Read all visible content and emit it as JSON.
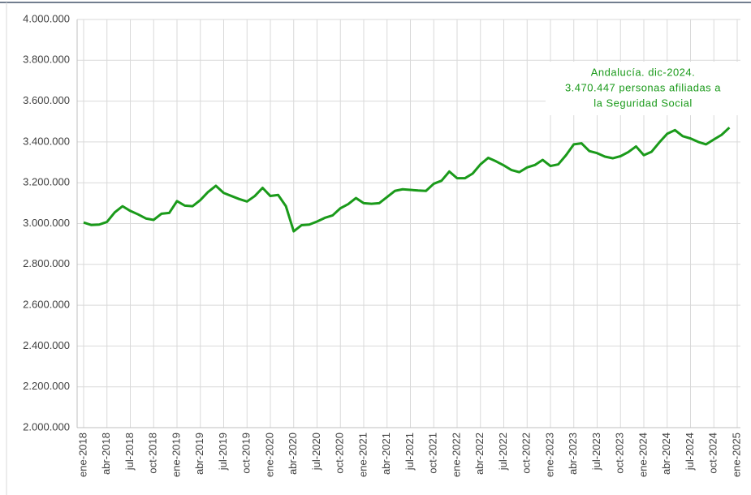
{
  "chart_data": {
    "type": "line",
    "annotation": [
      "Andalucía. dic-2024.",
      "3.470.447 personas afiliadas a",
      "la Seguridad Social"
    ],
    "categories": [
      "ene-2018",
      null,
      null,
      "abr-2018",
      null,
      null,
      "jul-2018",
      null,
      null,
      "oct-2018",
      null,
      null,
      "ene-2019",
      null,
      null,
      "abr-2019",
      null,
      null,
      "jul-2019",
      null,
      null,
      "oct-2019",
      null,
      null,
      "ene-2020",
      null,
      null,
      "abr-2020",
      null,
      null,
      "jul-2020",
      null,
      null,
      "oct-2020",
      null,
      null,
      "ene-2021",
      null,
      null,
      "abr-2021",
      null,
      null,
      "jul-2021",
      null,
      null,
      "oct-2021",
      null,
      null,
      "ene-2022",
      null,
      null,
      "abr-2022",
      null,
      null,
      "jul-2022",
      null,
      null,
      "oct-2022",
      null,
      null,
      "ene-2023",
      null,
      null,
      "abr-2023",
      null,
      null,
      "jul-2023",
      null,
      null,
      "oct-2023",
      null,
      null,
      "ene-2024",
      null,
      null,
      "abr-2024",
      null,
      null,
      "jul-2024",
      null,
      null,
      "oct-2024",
      null,
      null,
      "ene-2025"
    ],
    "series": [
      {
        "color": "#1a9a1a",
        "values": [
          3005000,
          2993000,
          2995000,
          3008000,
          3055000,
          3085000,
          3062000,
          3045000,
          3025000,
          3018000,
          3048000,
          3052000,
          3110000,
          3088000,
          3085000,
          3115000,
          3155000,
          3185000,
          3150000,
          3135000,
          3120000,
          3108000,
          3135000,
          3175000,
          3135000,
          3140000,
          3085000,
          2962000,
          2992000,
          2995000,
          3010000,
          3028000,
          3040000,
          3075000,
          3095000,
          3125000,
          3100000,
          3097000,
          3100000,
          3130000,
          3160000,
          3168000,
          3165000,
          3162000,
          3160000,
          3195000,
          3210000,
          3255000,
          3222000,
          3222000,
          3245000,
          3290000,
          3322000,
          3305000,
          3285000,
          3262000,
          3252000,
          3275000,
          3287000,
          3312000,
          3282000,
          3290000,
          3335000,
          3388000,
          3393000,
          3355000,
          3345000,
          3328000,
          3320000,
          3330000,
          3350000,
          3378000,
          3335000,
          3352000,
          3398000,
          3440000,
          3458000,
          3428000,
          3417000,
          3400000,
          3388000,
          3412000,
          3435000,
          3470447,
          null
        ]
      }
    ],
    "ylim": [
      2000000,
      4000000
    ],
    "yticks": [
      {
        "value": 2000000,
        "label": "2.000.000"
      },
      {
        "value": 2200000,
        "label": "2.200.000"
      },
      {
        "value": 2400000,
        "label": "2.400.000"
      },
      {
        "value": 2600000,
        "label": "2.600.000"
      },
      {
        "value": 2800000,
        "label": "2.800.000"
      },
      {
        "value": 3000000,
        "label": "3.000.000"
      },
      {
        "value": 3200000,
        "label": "3.200.000"
      },
      {
        "value": 3400000,
        "label": "3.400.000"
      },
      {
        "value": 3600000,
        "label": "3.600.000"
      },
      {
        "value": 3800000,
        "label": "3.800.000"
      },
      {
        "value": 4000000,
        "label": "4.000.000"
      }
    ],
    "grid": true
  }
}
